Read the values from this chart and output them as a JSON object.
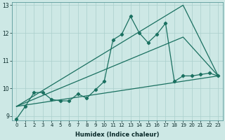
{
  "title": "",
  "xlabel": "Humidex (Indice chaleur)",
  "xlim": [
    -0.5,
    23.5
  ],
  "ylim": [
    8.85,
    13.1
  ],
  "yticks": [
    9,
    10,
    11,
    12,
    13
  ],
  "xticks": [
    0,
    1,
    2,
    3,
    4,
    5,
    6,
    7,
    8,
    9,
    10,
    11,
    12,
    13,
    14,
    15,
    16,
    17,
    18,
    19,
    20,
    21,
    22,
    23
  ],
  "bg_color": "#cde8e5",
  "grid_color": "#aacfcc",
  "line_color": "#1a7060",
  "zigzag": {
    "x": [
      0,
      1,
      2,
      3,
      4,
      5,
      6,
      7,
      8,
      9,
      10,
      11,
      12,
      13,
      14,
      15,
      16,
      17,
      18,
      19,
      20,
      21,
      22,
      23
    ],
    "y": [
      8.9,
      9.35,
      9.85,
      9.85,
      9.6,
      9.55,
      9.55,
      9.8,
      9.65,
      9.95,
      10.25,
      11.75,
      11.95,
      12.6,
      12.0,
      11.65,
      11.95,
      12.35,
      10.25,
      10.45,
      10.45,
      10.5,
      10.55,
      10.45
    ]
  },
  "line_flat": {
    "x": [
      0,
      23
    ],
    "y": [
      9.35,
      10.45
    ]
  },
  "line_upper": {
    "x": [
      0,
      19,
      23
    ],
    "y": [
      9.35,
      13.0,
      10.45
    ]
  },
  "line_mid": {
    "x": [
      0,
      19,
      23
    ],
    "y": [
      9.35,
      11.85,
      10.45
    ]
  }
}
